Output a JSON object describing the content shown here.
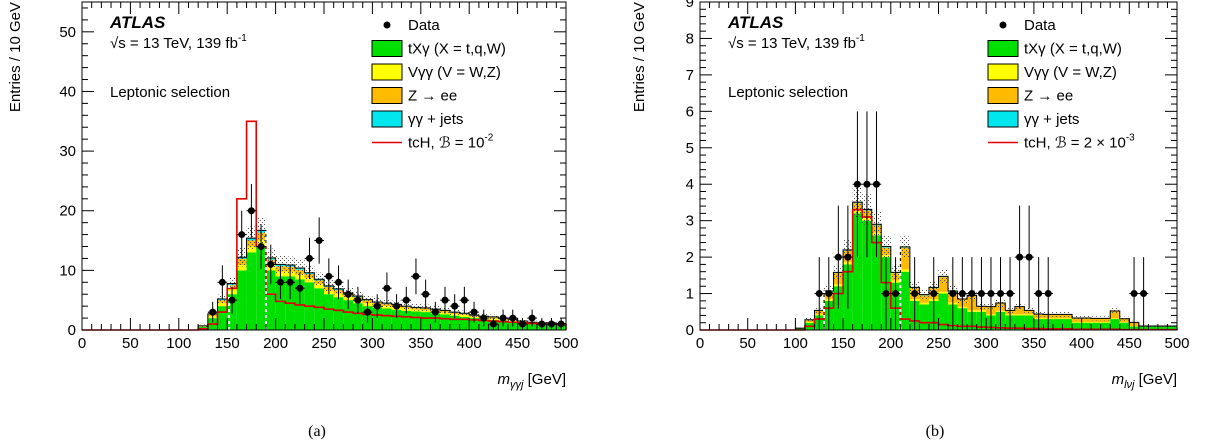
{
  "chart_data": [
    {
      "type": "bar",
      "caption": "(a)",
      "experiment": "ATLAS",
      "energy_label": "√s = 13 TeV, 139 fb",
      "energy_sup": "-1",
      "selection_label": "Leptonic selection",
      "xlabel_main": "m",
      "xlabel_sub": "γγj",
      "xlabel_unit": " [GeV]",
      "ylabel": "Entries / 10 GeV",
      "xlim": [
        0,
        500
      ],
      "ylim": [
        0,
        55
      ],
      "xticks": [
        0,
        50,
        100,
        150,
        200,
        250,
        300,
        350,
        400,
        450,
        500
      ],
      "yticks": [
        0,
        10,
        20,
        30,
        40,
        50
      ],
      "bin_width": 10,
      "cut_lines": [
        152,
        190
      ],
      "legend": [
        {
          "key": "data",
          "label": "Data"
        },
        {
          "key": "txg",
          "label": "tXγ (X = t,q,W)",
          "color": "#00e000"
        },
        {
          "key": "vgg",
          "label": "Vγγ (V = W,Z)",
          "color": "#ffff00"
        },
        {
          "key": "zee",
          "label": "Z → ee",
          "color": "#ffbb00"
        },
        {
          "key": "ggj",
          "label": "γγ + jets",
          "color": "#00e8ee"
        },
        {
          "key": "sig",
          "label_prefix": "tcH, ℬ = 10",
          "label_sup": "-2",
          "color": "#e00000"
        }
      ],
      "series": [
        {
          "name": "tXγ (X = t,q,W)",
          "x": [
            120,
            130,
            140,
            150,
            160,
            170,
            180,
            190,
            200,
            210,
            220,
            230,
            240,
            250,
            260,
            270,
            280,
            290,
            300,
            310,
            320,
            330,
            340,
            350,
            360,
            370,
            380,
            390,
            400,
            410,
            420,
            430,
            440,
            450,
            460,
            470,
            480,
            490
          ],
          "values": [
            0.5,
            2,
            4,
            6,
            10,
            13,
            14,
            10,
            9,
            9,
            8.5,
            8,
            7,
            6,
            5.5,
            5,
            4.5,
            4,
            3.8,
            3.6,
            3.4,
            3.2,
            3.1,
            3,
            2.8,
            2.6,
            2.4,
            2.2,
            2,
            1.8,
            1.7,
            1.6,
            1.4,
            1.2,
            1.1,
            1,
            1,
            0.9
          ]
        },
        {
          "name": "Vγγ (V = W,Z)",
          "x": [
            120,
            130,
            140,
            150,
            160,
            170,
            180,
            190,
            200,
            210,
            220,
            230,
            240,
            250,
            260,
            270,
            280,
            290,
            300,
            310,
            320,
            330,
            340,
            350,
            360,
            370,
            380,
            390,
            400,
            410,
            420,
            430,
            440,
            450,
            460,
            470,
            480,
            490
          ],
          "values": [
            0.1,
            0.3,
            0.5,
            0.7,
            0.9,
            1,
            1.1,
            0.9,
            0.8,
            0.8,
            0.8,
            0.7,
            0.7,
            0.6,
            0.6,
            0.5,
            0.5,
            0.5,
            0.4,
            0.4,
            0.4,
            0.4,
            0.3,
            0.3,
            0.3,
            0.3,
            0.3,
            0.3,
            0.2,
            0.2,
            0.2,
            0.2,
            0.2,
            0.2,
            0.1,
            0.1,
            0.1,
            0.1
          ]
        },
        {
          "name": "Z → ee",
          "x": [
            120,
            130,
            140,
            150,
            160,
            170,
            180,
            190,
            200,
            210,
            220,
            230,
            240,
            250,
            260,
            270,
            280,
            290,
            300,
            310,
            320,
            330,
            340,
            350,
            360,
            370,
            380,
            390,
            400,
            410,
            420,
            430,
            440,
            450,
            460,
            470,
            480,
            490
          ],
          "values": [
            0.1,
            0.3,
            0.5,
            0.8,
            1,
            1,
            1.2,
            0.9,
            0.9,
            0.8,
            0.8,
            0.7,
            0.6,
            0.6,
            0.6,
            0.5,
            0.5,
            0.5,
            0.4,
            0.4,
            0.4,
            0.3,
            0.3,
            0.3,
            0.3,
            0.3,
            0.2,
            0.2,
            0.2,
            0.2,
            0.2,
            0.2,
            0.2,
            0.1,
            0.1,
            0.1,
            0.1,
            0.1
          ]
        },
        {
          "name": "γγ + jets",
          "x": [
            120,
            130,
            140,
            150,
            160,
            170,
            180,
            190,
            200,
            210,
            220,
            230,
            240,
            250,
            260,
            270,
            280,
            290,
            300,
            310,
            320,
            330,
            340,
            350,
            360,
            370,
            380,
            390,
            400,
            410,
            420,
            430,
            440,
            450,
            460,
            470,
            480,
            490
          ],
          "values": [
            0,
            0.1,
            0.2,
            0.3,
            0.3,
            0.4,
            0.4,
            0.3,
            0.3,
            0.3,
            0.3,
            0.2,
            0.2,
            0.2,
            0.2,
            0.2,
            0.2,
            0.1,
            0.1,
            0.1,
            0.1,
            0.1,
            0.1,
            0.1,
            0.1,
            0.1,
            0.1,
            0.1,
            0.1,
            0.1,
            0.1,
            0,
            0,
            0,
            0,
            0,
            0,
            0
          ]
        },
        {
          "name": "tcH, ℬ = 10⁻²",
          "x": [
            100,
            110,
            120,
            130,
            140,
            150,
            160,
            170,
            180,
            190,
            200,
            210,
            220,
            230,
            240,
            250,
            260,
            270,
            280,
            290,
            300,
            310,
            320,
            330,
            340,
            350,
            360,
            370,
            380,
            390,
            400,
            410,
            420,
            430,
            440,
            450,
            460,
            470,
            480,
            490
          ],
          "values": [
            0,
            0,
            0.2,
            1,
            3,
            7,
            22,
            35,
            14,
            6,
            4.8,
            4.5,
            4.2,
            4,
            3.8,
            3.5,
            3.3,
            3,
            2.8,
            2.6,
            2.5,
            2.4,
            2.3,
            2.2,
            2.1,
            2,
            2,
            1.9,
            1.8,
            1.8,
            1.7,
            1.6,
            1.5,
            1.4,
            1.3,
            1.2,
            1.1,
            1,
            1,
            0.9
          ]
        },
        {
          "name": "Data",
          "x": [
            135,
            145,
            155,
            165,
            175,
            185,
            195,
            205,
            215,
            225,
            235,
            245,
            255,
            265,
            275,
            285,
            295,
            305,
            315,
            325,
            335,
            345,
            355,
            365,
            375,
            385,
            395,
            405,
            415,
            425,
            435,
            445,
            455,
            465,
            475,
            485,
            495
          ],
          "values": [
            3,
            8,
            5,
            16,
            20,
            14,
            11,
            8,
            8,
            7,
            12,
            15,
            9,
            8,
            6,
            5,
            3,
            4,
            7,
            4,
            5,
            9,
            6,
            3,
            5,
            4,
            5,
            3,
            2,
            1,
            2,
            2,
            1,
            2,
            1,
            1,
            1
          ]
        }
      ]
    },
    {
      "type": "bar",
      "caption": "(b)",
      "experiment": "ATLAS",
      "energy_label": "√s = 13 TeV, 139 fb",
      "energy_sup": "-1",
      "selection_label": "Leptonic selection",
      "xlabel_main": "m",
      "xlabel_sub": "lνj",
      "xlabel_unit": " [GeV]",
      "ylabel": "Entries / 10 GeV",
      "xlim": [
        0,
        500
      ],
      "ylim": [
        0,
        9
      ],
      "xticks": [
        0,
        50,
        100,
        150,
        200,
        250,
        300,
        350,
        400,
        450,
        500
      ],
      "yticks": [
        0,
        1,
        2,
        3,
        4,
        5,
        6,
        7,
        8,
        9
      ],
      "bin_width": 10,
      "cut_lines": [
        130,
        210
      ],
      "legend": [
        {
          "key": "data",
          "label": "Data"
        },
        {
          "key": "txg",
          "label": "tXγ (X = t,q,W)",
          "color": "#00e000"
        },
        {
          "key": "vgg",
          "label": "Vγγ (V = W,Z)",
          "color": "#ffff00"
        },
        {
          "key": "zee",
          "label": "Z → ee",
          "color": "#ffbb00"
        },
        {
          "key": "ggj",
          "label": "γγ + jets",
          "color": "#00e8ee"
        },
        {
          "key": "sig",
          "label_prefix": "tcH, ℬ = 2 × 10",
          "label_sup": "-3",
          "color": "#e00000"
        }
      ],
      "series": [
        {
          "name": "tXγ (X = t,q,W)",
          "x": [
            100,
            110,
            120,
            130,
            140,
            150,
            160,
            170,
            180,
            190,
            200,
            210,
            220,
            230,
            240,
            250,
            260,
            270,
            280,
            290,
            300,
            310,
            320,
            330,
            340,
            350,
            360,
            370,
            380,
            390,
            400,
            410,
            420,
            430,
            440,
            450,
            460,
            470,
            480,
            490
          ],
          "values": [
            0.05,
            0.2,
            0.4,
            0.8,
            1.2,
            1.8,
            3.2,
            3,
            2.6,
            2,
            1.3,
            1.6,
            0.8,
            0.7,
            0.8,
            1,
            0.7,
            0.6,
            0.5,
            0.5,
            0.4,
            0.5,
            0.4,
            0.4,
            0.4,
            0.3,
            0.3,
            0.3,
            0.3,
            0.2,
            0.2,
            0.2,
            0.2,
            0.3,
            0.2,
            0.1,
            0.1,
            0.1,
            0.1,
            0.1
          ]
        },
        {
          "name": "Vγγ (V = W,Z)",
          "x": [
            100,
            110,
            120,
            130,
            140,
            150,
            160,
            170,
            180,
            190,
            200,
            210,
            220,
            230,
            240,
            250,
            260,
            270,
            280,
            290,
            300,
            310,
            320,
            330,
            340,
            350,
            360,
            370,
            380,
            390,
            400,
            410,
            420,
            430,
            440,
            450,
            460,
            470,
            480,
            490
          ],
          "values": [
            0,
            0.02,
            0.03,
            0.05,
            0.06,
            0.07,
            0.08,
            0.08,
            0.07,
            0.06,
            0.06,
            0.06,
            0.05,
            0.05,
            0.05,
            0.05,
            0.05,
            0.04,
            0.04,
            0.04,
            0.03,
            0.03,
            0.03,
            0.03,
            0.03,
            0.03,
            0.02,
            0.02,
            0.02,
            0.02,
            0.02,
            0.02,
            0.02,
            0.02,
            0.01,
            0.01,
            0.01,
            0.01,
            0.01,
            0.01
          ]
        },
        {
          "name": "Z → ee",
          "x": [
            100,
            110,
            120,
            130,
            140,
            150,
            160,
            170,
            180,
            190,
            200,
            210,
            220,
            230,
            240,
            250,
            260,
            270,
            280,
            290,
            300,
            310,
            320,
            330,
            340,
            350,
            360,
            370,
            380,
            390,
            400,
            410,
            420,
            430,
            440,
            450,
            460,
            470,
            480,
            490
          ],
          "values": [
            0,
            0.05,
            0.1,
            0.2,
            0.3,
            0.3,
            0.2,
            0.2,
            0.2,
            0.2,
            0.2,
            0.6,
            0.3,
            0.2,
            0.3,
            0.4,
            0.3,
            0.2,
            0.4,
            0.1,
            0.2,
            0.2,
            0.1,
            0.2,
            0.1,
            0.1,
            0.1,
            0.1,
            0.1,
            0.1,
            0.1,
            0.1,
            0.1,
            0.2,
            0.1,
            0.1,
            0,
            0,
            0,
            0
          ]
        },
        {
          "name": "γγ + jets",
          "x": [
            100,
            110,
            120,
            130,
            140,
            150,
            160,
            170,
            180,
            190,
            200,
            210,
            220,
            230,
            240,
            250,
            260,
            270,
            280,
            290,
            300,
            310,
            320,
            330,
            340,
            350,
            360,
            370,
            380,
            390,
            400,
            410,
            420,
            430,
            440,
            450,
            460,
            470,
            480,
            490
          ],
          "values": [
            0,
            0.01,
            0.01,
            0.02,
            0.02,
            0.03,
            0.03,
            0.03,
            0.03,
            0.03,
            0.02,
            0.02,
            0.02,
            0.02,
            0.02,
            0.02,
            0.02,
            0.01,
            0.01,
            0.01,
            0.01,
            0.01,
            0.01,
            0.01,
            0.01,
            0.01,
            0.01,
            0.01,
            0.01,
            0.01,
            0.01,
            0,
            0,
            0,
            0,
            0,
            0,
            0,
            0,
            0
          ]
        },
        {
          "name": "tcH, ℬ = 2 × 10⁻³",
          "x": [
            100,
            110,
            120,
            130,
            140,
            150,
            160,
            170,
            180,
            190,
            200,
            210,
            220,
            230,
            240,
            250,
            260,
            270,
            280,
            290,
            300,
            310,
            320,
            330,
            340,
            350,
            360,
            370,
            380,
            390,
            400,
            410,
            420,
            430,
            440,
            450,
            460,
            470,
            480,
            490
          ],
          "values": [
            0,
            0.1,
            0.3,
            0.6,
            1,
            1.6,
            3.3,
            3.1,
            2.4,
            1.3,
            0.6,
            0.3,
            0.25,
            0.2,
            0.2,
            0.15,
            0.12,
            0.1,
            0.1,
            0.08,
            0.07,
            0.06,
            0.05,
            0.05,
            0.04,
            0.04,
            0.03,
            0.03,
            0.03,
            0.02,
            0.02,
            0.02,
            0.02,
            0.02,
            0.01,
            0.01,
            0.01,
            0.01,
            0.01,
            0.01
          ]
        },
        {
          "name": "Data",
          "x": [
            125,
            135,
            145,
            155,
            165,
            175,
            185,
            195,
            205,
            225,
            245,
            265,
            275,
            285,
            295,
            305,
            315,
            325,
            335,
            345,
            355,
            365,
            455,
            465
          ],
          "values": [
            1,
            1,
            2,
            2,
            4,
            4,
            4,
            1,
            1,
            1,
            1,
            1,
            1,
            1,
            1,
            1,
            1,
            1,
            2,
            2,
            1,
            1,
            1,
            1
          ]
        }
      ]
    }
  ]
}
